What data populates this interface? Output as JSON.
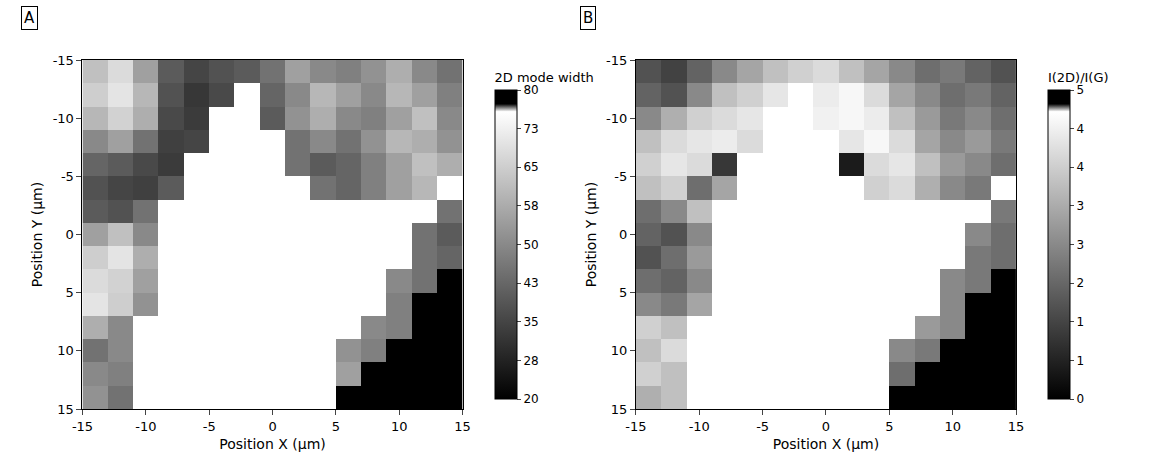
{
  "chart_data": [
    {
      "type": "heatmap",
      "label": "A",
      "x_label": "Position X (μm)",
      "y_label": "Position Y (μm)",
      "xlim": [
        -15,
        15
      ],
      "ylim": [
        15,
        -15
      ],
      "xticks": [
        -15,
        -10,
        -5,
        0,
        5,
        10,
        15
      ],
      "yticks": [
        -15,
        -10,
        -5,
        0,
        5,
        10,
        15
      ],
      "x": [
        -14,
        -12,
        -10,
        -8,
        -6,
        -4,
        -2,
        0,
        2,
        4,
        6,
        8,
        10,
        12,
        14
      ],
      "y": [
        -14,
        -12,
        -10,
        -8,
        -6,
        -4,
        -2,
        0,
        2,
        4,
        6,
        8,
        10,
        12,
        14
      ],
      "z": [
        [
          62,
          68,
          55,
          40,
          35,
          38,
          40,
          45,
          55,
          50,
          48,
          52,
          58,
          50,
          45
        ],
        [
          65,
          70,
          60,
          38,
          32,
          36,
          null,
          42,
          50,
          60,
          55,
          50,
          60,
          55,
          48
        ],
        [
          60,
          66,
          58,
          36,
          33,
          null,
          null,
          40,
          52,
          58,
          50,
          48,
          55,
          62,
          50
        ],
        [
          50,
          55,
          45,
          34,
          35,
          null,
          null,
          null,
          45,
          50,
          45,
          52,
          60,
          58,
          52
        ],
        [
          42,
          40,
          36,
          33,
          null,
          null,
          null,
          null,
          45,
          40,
          42,
          48,
          55,
          62,
          58
        ],
        [
          38,
          35,
          34,
          40,
          null,
          null,
          null,
          null,
          null,
          45,
          42,
          48,
          55,
          60,
          null
        ],
        [
          40,
          38,
          45,
          null,
          null,
          null,
          null,
          null,
          null,
          null,
          null,
          null,
          null,
          null,
          45
        ],
        [
          55,
          62,
          50,
          null,
          null,
          null,
          null,
          null,
          null,
          null,
          null,
          null,
          null,
          45,
          40
        ],
        [
          65,
          70,
          58,
          null,
          null,
          null,
          null,
          null,
          null,
          null,
          null,
          null,
          null,
          45,
          42
        ],
        [
          68,
          66,
          55,
          null,
          null,
          null,
          null,
          null,
          null,
          null,
          null,
          null,
          50,
          45,
          80
        ],
        [
          70,
          65,
          52,
          null,
          null,
          null,
          null,
          null,
          null,
          null,
          null,
          null,
          48,
          80,
          80
        ],
        [
          58,
          50,
          null,
          null,
          null,
          null,
          null,
          null,
          null,
          null,
          null,
          50,
          48,
          80,
          80
        ],
        [
          45,
          50,
          null,
          null,
          null,
          null,
          null,
          null,
          null,
          null,
          52,
          48,
          80,
          80,
          80
        ],
        [
          50,
          48,
          null,
          null,
          null,
          null,
          null,
          null,
          null,
          null,
          55,
          80,
          80,
          80,
          80
        ],
        [
          52,
          45,
          null,
          null,
          null,
          null,
          null,
          null,
          null,
          null,
          80,
          80,
          80,
          80,
          80
        ]
      ],
      "colorbar": {
        "title": "2D mode width",
        "range": [
          20,
          80
        ],
        "ticks": [
          20,
          {
            "value": 27.5,
            "label": "28"
          },
          35,
          {
            "value": 42.5,
            "label": "43"
          },
          50,
          {
            "value": 57.5,
            "label": "58"
          },
          65,
          {
            "value": 72.5,
            "label": "73"
          },
          80
        ]
      }
    },
    {
      "type": "heatmap",
      "label": "B",
      "x_label": "Position X (μm)",
      "y_label": "Position Y (μm)",
      "xlim": [
        -15,
        15
      ],
      "ylim": [
        15,
        -15
      ],
      "xticks": [
        -15,
        -10,
        -5,
        0,
        5,
        10,
        15
      ],
      "yticks": [
        -15,
        -10,
        -5,
        0,
        5,
        10,
        15
      ],
      "x": [
        -14,
        -12,
        -10,
        -8,
        -6,
        -4,
        -2,
        0,
        2,
        4,
        6,
        8,
        10,
        12,
        14
      ],
      "y": [
        -14,
        -12,
        -10,
        -8,
        -6,
        -4,
        -2,
        0,
        2,
        4,
        6,
        8,
        10,
        12,
        14
      ],
      "z": [
        [
          1.5,
          1.2,
          1.8,
          2.5,
          3.0,
          3.5,
          3.8,
          4.0,
          3.5,
          3.0,
          2.5,
          2.0,
          2.2,
          1.8,
          1.5
        ],
        [
          1.8,
          1.5,
          2.5,
          3.5,
          3.8,
          4.2,
          null,
          4.3,
          4.5,
          4.0,
          3.0,
          2.5,
          2.0,
          2.2,
          1.8
        ],
        [
          2.5,
          3.2,
          3.8,
          4.0,
          4.2,
          null,
          null,
          4.4,
          4.5,
          4.3,
          3.5,
          2.8,
          2.2,
          2.5,
          2.0
        ],
        [
          3.5,
          4.0,
          4.2,
          4.3,
          4.0,
          null,
          null,
          null,
          4.2,
          4.5,
          4.0,
          3.0,
          2.5,
          2.8,
          2.2
        ],
        [
          3.8,
          4.2,
          4.0,
          1.0,
          null,
          null,
          null,
          null,
          0.5,
          4.0,
          4.2,
          3.5,
          2.8,
          2.5,
          2.0
        ],
        [
          3.5,
          3.8,
          2.0,
          3.0,
          null,
          null,
          null,
          null,
          null,
          3.8,
          4.0,
          3.2,
          2.5,
          2.2,
          null
        ],
        [
          2.0,
          2.5,
          3.5,
          null,
          null,
          null,
          null,
          null,
          null,
          null,
          null,
          null,
          null,
          null,
          2.2
        ],
        [
          1.8,
          1.5,
          2.5,
          null,
          null,
          null,
          null,
          null,
          null,
          null,
          null,
          null,
          null,
          2.5,
          2.0
        ],
        [
          1.5,
          2.0,
          2.8,
          null,
          null,
          null,
          null,
          null,
          null,
          null,
          null,
          null,
          null,
          2.2,
          2.0
        ],
        [
          2.0,
          1.8,
          2.5,
          null,
          null,
          null,
          null,
          null,
          null,
          null,
          null,
          null,
          2.5,
          2.2,
          5
        ],
        [
          2.5,
          2.2,
          3.0,
          null,
          null,
          null,
          null,
          null,
          null,
          null,
          null,
          null,
          2.5,
          5,
          5
        ],
        [
          3.8,
          3.5,
          null,
          null,
          null,
          null,
          null,
          null,
          null,
          null,
          null,
          2.8,
          2.5,
          5,
          5
        ],
        [
          3.5,
          4.0,
          null,
          null,
          null,
          null,
          null,
          null,
          null,
          null,
          2.5,
          2.2,
          5,
          5,
          5
        ],
        [
          3.8,
          3.5,
          null,
          null,
          null,
          null,
          null,
          null,
          null,
          null,
          2.0,
          5,
          5,
          5,
          5
        ],
        [
          3.2,
          3.5,
          null,
          null,
          null,
          null,
          null,
          null,
          null,
          null,
          5,
          5,
          5,
          5,
          5
        ]
      ],
      "colorbar": {
        "title": "I(2D)/I(G)",
        "range": [
          0,
          5
        ],
        "ticks": [
          0,
          {
            "value": 0.625,
            "label": "1"
          },
          {
            "value": 1.25,
            "label": "1"
          },
          {
            "value": 1.875,
            "label": "2"
          },
          {
            "value": 2.5,
            "label": "3"
          },
          {
            "value": 3.125,
            "label": "3"
          },
          {
            "value": 3.75,
            "label": "4"
          },
          {
            "value": 4.375,
            "label": "4"
          },
          5
        ]
      }
    }
  ]
}
